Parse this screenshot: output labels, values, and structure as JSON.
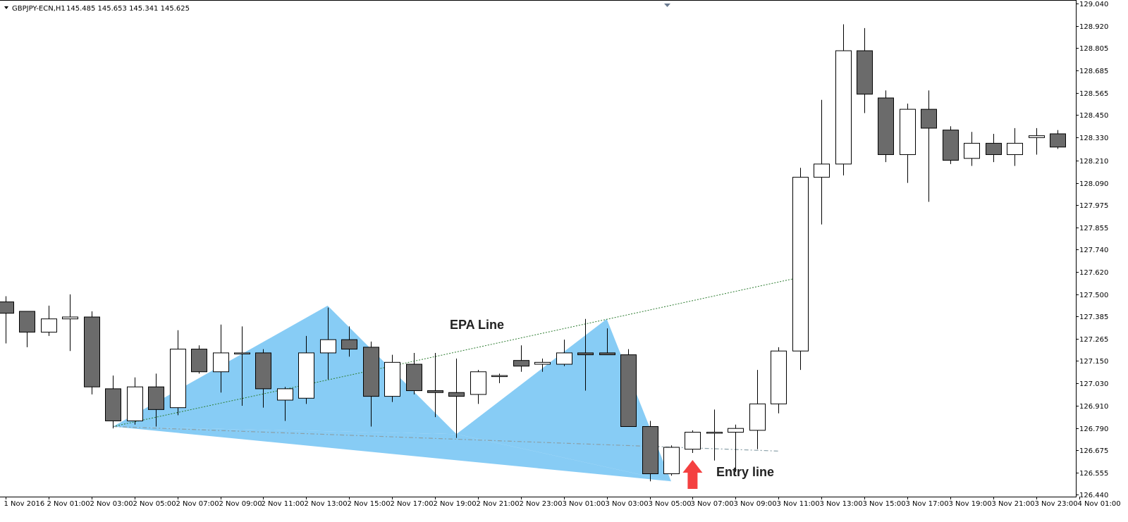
{
  "header": {
    "symbol": "GBPJPY-ECN,H1",
    "ohlc": "145.485 145.653 145.341 145.625"
  },
  "colors": {
    "bull_body": "#ffffff",
    "bear_body": "#6b6b6b",
    "candle_outline": "#000000",
    "pattern_fill": "#87ccf5",
    "epa_line": "#2e7d32",
    "entry_line": "#8aa0a8",
    "arrow": "#f44040"
  },
  "annotations": {
    "epa_label": "EPA Line",
    "entry_label": "Entry line"
  },
  "chart_data": {
    "type": "candlestick",
    "y_axis": {
      "position": "right",
      "range": [
        126.44,
        129.04
      ],
      "ticks": [
        "129.040",
        "128.920",
        "128.805",
        "128.685",
        "128.565",
        "128.450",
        "128.330",
        "128.210",
        "128.090",
        "127.975",
        "127.855",
        "127.740",
        "127.620",
        "127.500",
        "127.385",
        "127.265",
        "127.150",
        "127.030",
        "126.910",
        "126.790",
        "126.675",
        "126.555",
        "126.440"
      ]
    },
    "x_axis": {
      "ticks": [
        "1 Nov 2016",
        "2 Nov 01:00",
        "2 Nov 03:00",
        "2 Nov 05:00",
        "2 Nov 07:00",
        "2 Nov 09:00",
        "2 Nov 11:00",
        "2 Nov 13:00",
        "2 Nov 15:00",
        "2 Nov 17:00",
        "2 Nov 19:00",
        "2 Nov 21:00",
        "2 Nov 23:00",
        "3 Nov 01:00",
        "3 Nov 03:00",
        "3 Nov 05:00",
        "3 Nov 07:00",
        "3 Nov 09:00",
        "3 Nov 11:00",
        "3 Nov 13:00",
        "3 Nov 15:00",
        "3 Nov 17:00",
        "3 Nov 19:00",
        "3 Nov 21:00",
        "3 Nov 23:00",
        "4 Nov 01:00"
      ]
    },
    "candles": [
      {
        "o": 127.46,
        "h": 127.49,
        "l": 127.24,
        "c": 127.4
      },
      {
        "o": 127.41,
        "h": 127.41,
        "l": 127.22,
        "c": 127.3
      },
      {
        "o": 127.3,
        "h": 127.44,
        "l": 127.28,
        "c": 127.37
      },
      {
        "o": 127.37,
        "h": 127.5,
        "l": 127.2,
        "c": 127.38
      },
      {
        "o": 127.38,
        "h": 127.41,
        "l": 126.97,
        "c": 127.01
      },
      {
        "o": 127.0,
        "h": 127.07,
        "l": 126.79,
        "c": 126.83
      },
      {
        "o": 126.83,
        "h": 127.06,
        "l": 126.81,
        "c": 127.01
      },
      {
        "o": 127.01,
        "h": 127.08,
        "l": 126.8,
        "c": 126.89
      },
      {
        "o": 126.9,
        "h": 127.31,
        "l": 126.86,
        "c": 127.21
      },
      {
        "o": 127.21,
        "h": 127.23,
        "l": 127.08,
        "c": 127.09
      },
      {
        "o": 127.09,
        "h": 127.34,
        "l": 126.98,
        "c": 127.19
      },
      {
        "o": 127.19,
        "h": 127.33,
        "l": 126.91,
        "c": 127.19
      },
      {
        "o": 127.19,
        "h": 127.21,
        "l": 126.9,
        "c": 127.0
      },
      {
        "o": 126.94,
        "h": 127.01,
        "l": 126.83,
        "c": 127.0
      },
      {
        "o": 126.95,
        "h": 127.28,
        "l": 126.92,
        "c": 127.19
      },
      {
        "o": 127.19,
        "h": 127.43,
        "l": 127.05,
        "c": 127.26
      },
      {
        "o": 127.26,
        "h": 127.33,
        "l": 127.17,
        "c": 127.21
      },
      {
        "o": 127.22,
        "h": 127.25,
        "l": 126.8,
        "c": 126.96
      },
      {
        "o": 126.96,
        "h": 127.18,
        "l": 126.93,
        "c": 127.14
      },
      {
        "o": 127.13,
        "h": 127.19,
        "l": 126.97,
        "c": 126.99
      },
      {
        "o": 126.99,
        "h": 127.19,
        "l": 126.85,
        "c": 126.98
      },
      {
        "o": 126.98,
        "h": 127.16,
        "l": 126.74,
        "c": 126.96
      },
      {
        "o": 126.97,
        "h": 127.1,
        "l": 126.92,
        "c": 127.09
      },
      {
        "o": 127.07,
        "h": 127.08,
        "l": 127.03,
        "c": 127.07
      },
      {
        "o": 127.15,
        "h": 127.23,
        "l": 127.09,
        "c": 127.12
      },
      {
        "o": 127.13,
        "h": 127.16,
        "l": 127.09,
        "c": 127.14
      },
      {
        "o": 127.13,
        "h": 127.26,
        "l": 127.12,
        "c": 127.19
      },
      {
        "o": 127.19,
        "h": 127.37,
        "l": 126.99,
        "c": 127.18
      },
      {
        "o": 127.19,
        "h": 127.32,
        "l": 127.18,
        "c": 127.18
      },
      {
        "o": 127.18,
        "h": 127.21,
        "l": 126.8,
        "c": 126.8
      },
      {
        "o": 126.8,
        "h": 126.83,
        "l": 126.51,
        "c": 126.55
      },
      {
        "o": 126.55,
        "h": 126.7,
        "l": 126.54,
        "c": 126.69
      },
      {
        "o": 126.68,
        "h": 126.78,
        "l": 126.66,
        "c": 126.77
      },
      {
        "o": 126.77,
        "h": 126.89,
        "l": 126.62,
        "c": 126.77
      },
      {
        "o": 126.77,
        "h": 126.81,
        "l": 126.56,
        "c": 126.79
      },
      {
        "o": 126.78,
        "h": 127.1,
        "l": 126.68,
        "c": 126.92
      },
      {
        "o": 126.92,
        "h": 127.22,
        "l": 126.87,
        "c": 127.2
      },
      {
        "o": 127.2,
        "h": 128.17,
        "l": 127.1,
        "c": 128.12
      },
      {
        "o": 128.12,
        "h": 128.53,
        "l": 127.87,
        "c": 128.19
      },
      {
        "o": 128.19,
        "h": 128.93,
        "l": 128.13,
        "c": 128.79
      },
      {
        "o": 128.79,
        "h": 128.91,
        "l": 128.46,
        "c": 128.56
      },
      {
        "o": 128.54,
        "h": 128.58,
        "l": 128.2,
        "c": 128.24
      },
      {
        "o": 128.24,
        "h": 128.51,
        "l": 128.09,
        "c": 128.48
      },
      {
        "o": 128.48,
        "h": 128.58,
        "l": 127.99,
        "c": 128.38
      },
      {
        "o": 128.37,
        "h": 128.39,
        "l": 128.19,
        "c": 128.21
      },
      {
        "o": 128.22,
        "h": 128.36,
        "l": 128.18,
        "c": 128.3
      },
      {
        "o": 128.3,
        "h": 128.35,
        "l": 128.2,
        "c": 128.24
      },
      {
        "o": 128.24,
        "h": 128.38,
        "l": 128.18,
        "c": 128.3
      },
      {
        "o": 128.33,
        "h": 128.38,
        "l": 128.24,
        "c": 128.34
      },
      {
        "o": 128.35,
        "h": 128.37,
        "l": 128.27,
        "c": 128.28
      }
    ],
    "pattern_triangles": [
      {
        "points": [
          [
            5,
            126.8
          ],
          [
            15,
            127.44
          ],
          [
            21,
            126.76
          ]
        ]
      },
      {
        "points": [
          [
            21,
            126.76
          ],
          [
            28,
            127.37
          ],
          [
            31,
            126.51
          ]
        ]
      },
      {
        "points": [
          [
            5,
            126.8
          ],
          [
            21,
            126.76
          ],
          [
            31,
            126.51
          ]
        ]
      }
    ],
    "epa_line": {
      "from": [
        5,
        126.8
      ],
      "to": [
        37,
        127.59
      ]
    },
    "entry_line": {
      "from": [
        5,
        126.8
      ],
      "to": [
        36,
        126.67
      ]
    },
    "entry_arrow_bar": 32
  }
}
